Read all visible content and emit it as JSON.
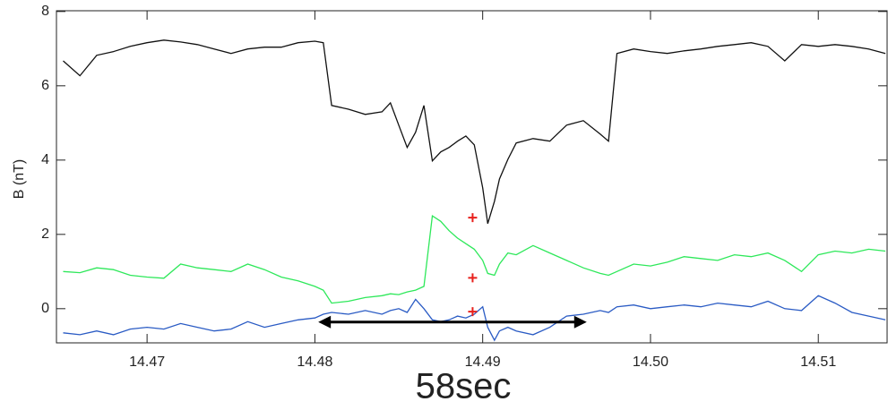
{
  "chart_data": {
    "type": "line",
    "ylabel": "B (nT)",
    "xlim": [
      14.4646,
      14.5141
    ],
    "ylim": [
      -0.92,
      8.02
    ],
    "xticks": [
      14.47,
      14.48,
      14.49,
      {
        "value": 14.5,
        "label": "14.50"
      },
      14.51
    ],
    "yticks": [
      0,
      2,
      4,
      6,
      8
    ],
    "x": [
      14.465,
      14.466,
      14.467,
      14.468,
      14.469,
      14.47,
      14.471,
      14.472,
      14.473,
      14.474,
      14.475,
      14.476,
      14.477,
      14.478,
      14.479,
      14.48,
      14.4805,
      14.481,
      14.482,
      14.483,
      14.484,
      14.4845,
      14.485,
      14.4855,
      14.486,
      14.4865,
      14.487,
      14.4875,
      14.488,
      14.4885,
      14.489,
      14.4895,
      14.49,
      14.4903,
      14.4907,
      14.491,
      14.4915,
      14.492,
      14.493,
      14.494,
      14.495,
      14.496,
      14.497,
      14.4975,
      14.498,
      14.499,
      14.5,
      14.501,
      14.502,
      14.503,
      14.504,
      14.505,
      14.506,
      14.507,
      14.508,
      14.509,
      14.51,
      14.511,
      14.512,
      14.513,
      14.514
    ],
    "series": [
      {
        "color": "#111111",
        "values": [
          6.67,
          6.27,
          6.82,
          6.92,
          7.06,
          7.16,
          7.23,
          7.18,
          7.11,
          6.99,
          6.87,
          6.99,
          7.04,
          7.04,
          7.16,
          7.2,
          7.16,
          5.47,
          5.37,
          5.23,
          5.3,
          5.54,
          4.94,
          4.34,
          4.75,
          5.47,
          3.98,
          4.22,
          4.34,
          4.51,
          4.65,
          4.41,
          3.25,
          2.29,
          2.89,
          3.49,
          4.02,
          4.46,
          4.58,
          4.51,
          4.94,
          5.06,
          4.7,
          4.51,
          6.87,
          6.99,
          6.92,
          6.87,
          6.94,
          6.99,
          7.06,
          7.11,
          7.16,
          7.06,
          6.67,
          7.11,
          7.06,
          7.11,
          7.06,
          6.99,
          6.87
        ]
      },
      {
        "color": "#2ee85a",
        "values": [
          1.0,
          0.97,
          1.1,
          1.05,
          0.9,
          0.85,
          0.82,
          1.2,
          1.1,
          1.05,
          1.0,
          1.2,
          1.05,
          0.85,
          0.75,
          0.6,
          0.5,
          0.15,
          0.2,
          0.3,
          0.35,
          0.4,
          0.38,
          0.45,
          0.5,
          0.6,
          2.5,
          2.35,
          2.1,
          1.9,
          1.75,
          1.6,
          1.3,
          0.95,
          0.9,
          1.2,
          1.5,
          1.45,
          1.7,
          1.5,
          1.3,
          1.1,
          0.95,
          0.9,
          1.0,
          1.2,
          1.15,
          1.25,
          1.4,
          1.35,
          1.3,
          1.45,
          1.4,
          1.5,
          1.3,
          1.0,
          1.45,
          1.55,
          1.5,
          1.6,
          1.55
        ]
      },
      {
        "color": "#2a5bc4",
        "values": [
          -0.65,
          -0.7,
          -0.6,
          -0.7,
          -0.55,
          -0.5,
          -0.55,
          -0.4,
          -0.5,
          -0.6,
          -0.55,
          -0.35,
          -0.5,
          -0.4,
          -0.3,
          -0.25,
          -0.15,
          -0.1,
          -0.15,
          -0.05,
          -0.15,
          -0.05,
          0.0,
          -0.1,
          0.25,
          0.0,
          -0.3,
          -0.35,
          -0.3,
          -0.2,
          -0.25,
          -0.15,
          0.05,
          -0.5,
          -0.85,
          -0.6,
          -0.5,
          -0.6,
          -0.7,
          -0.5,
          -0.2,
          -0.15,
          -0.05,
          -0.1,
          0.05,
          0.1,
          0.0,
          0.05,
          0.1,
          0.05,
          0.15,
          0.1,
          0.05,
          0.2,
          0.0,
          -0.05,
          0.35,
          0.15,
          -0.1,
          -0.2,
          -0.3
        ]
      }
    ],
    "markers": {
      "color": "#e8201c",
      "x": [
        14.4894,
        14.4894,
        14.4894
      ],
      "y": [
        2.45,
        0.83,
        -0.08
      ]
    },
    "arrow": {
      "color": "#000000",
      "x": [
        14.4802,
        14.4962
      ],
      "y": -0.36
    },
    "annotation": "58sec"
  }
}
